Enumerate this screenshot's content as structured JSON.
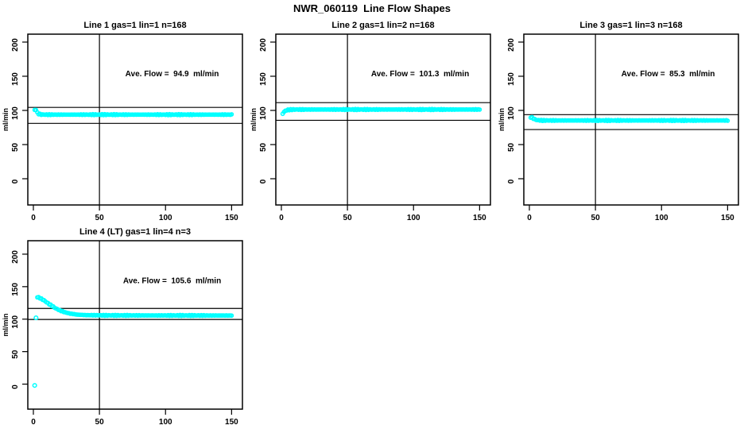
{
  "page": {
    "title": "NWR_060119  Line Flow Shapes"
  },
  "colors": {
    "point": "#00FFFF",
    "axis": "#000000",
    "text": "#000000",
    "background": "#FFFFFF"
  },
  "chart_data": [
    {
      "type": "scatter",
      "title": "Line 1 gas=1 lin=1 n=168",
      "annotation": "Ave. Flow =  94.9  ml/min",
      "ave_flow": 94.9,
      "n": 168,
      "ylabel": "ml/min",
      "x_ticks": [
        0,
        50,
        100,
        150
      ],
      "y_ticks": [
        0,
        50,
        100,
        150,
        200
      ],
      "xlim": [
        -4.2,
        158.2
      ],
      "ylim": [
        -38.4,
        211.6
      ],
      "vline_x": 50,
      "hlines": [
        104.4,
        81.0
      ],
      "ave_label_pos": {
        "x": 105,
        "y": 150
      },
      "profile": [
        [
          1,
          100.5
        ],
        [
          2,
          101
        ],
        [
          3,
          96.5
        ],
        [
          4,
          95
        ],
        [
          6,
          94
        ],
        [
          10,
          93.8
        ],
        [
          150,
          93.8
        ]
      ],
      "extra_points": [],
      "x_end": 150
    },
    {
      "type": "scatter",
      "title": "Line 2 gas=1 lin=2 n=168",
      "annotation": "Ave. Flow =  101.3  ml/min",
      "ave_flow": 101.3,
      "n": 168,
      "ylabel": "ml/min",
      "x_ticks": [
        0,
        50,
        100,
        150
      ],
      "y_ticks": [
        0,
        50,
        100,
        150,
        200
      ],
      "xlim": [
        -4.2,
        158.2
      ],
      "ylim": [
        -38.4,
        211.6
      ],
      "vline_x": 50,
      "hlines": [
        111.4,
        85.5
      ],
      "ave_label_pos": {
        "x": 105,
        "y": 150
      },
      "profile": [
        [
          1,
          95.5
        ],
        [
          2,
          97.5
        ],
        [
          3,
          99.5
        ],
        [
          5,
          100.8
        ],
        [
          9,
          101.3
        ],
        [
          150,
          101.3
        ]
      ],
      "extra_points": [],
      "x_end": 150
    },
    {
      "type": "scatter",
      "title": "Line 3 gas=1 lin=3 n=168",
      "annotation": "Ave. Flow =  85.3  ml/min",
      "ave_flow": 85.3,
      "n": 168,
      "ylabel": "ml/min",
      "x_ticks": [
        0,
        50,
        100,
        150
      ],
      "y_ticks": [
        0,
        50,
        100,
        150,
        200
      ],
      "xlim": [
        -4.2,
        158.2
      ],
      "ylim": [
        -38.4,
        211.6
      ],
      "vline_x": 50,
      "hlines": [
        93.8,
        72.0
      ],
      "ave_label_pos": {
        "x": 105,
        "y": 150
      },
      "profile": [
        [
          1,
          90
        ],
        [
          2,
          89.5
        ],
        [
          4,
          87
        ],
        [
          6,
          85.8
        ],
        [
          10,
          85.3
        ],
        [
          150,
          85.3
        ]
      ],
      "extra_points": [],
      "x_end": 150
    },
    {
      "type": "scatter",
      "title": "Line 4 (LT) gas=1 lin=4 n=3",
      "annotation": "Ave. Flow =  105.6  ml/min",
      "ave_flow": 105.6,
      "n": 3,
      "ylabel": "ml/min",
      "x_ticks": [
        0,
        50,
        100,
        150
      ],
      "y_ticks": [
        0,
        50,
        100,
        150,
        200
      ],
      "xlim": [
        -4.2,
        158.2
      ],
      "ylim": [
        -38.5,
        220.7
      ],
      "vline_x": 50,
      "hlines": [
        116.5,
        99.5
      ],
      "ave_label_pos": {
        "x": 105,
        "y": 155
      },
      "profile": [
        [
          3,
          134
        ],
        [
          5,
          132.5
        ],
        [
          8,
          129
        ],
        [
          11,
          124.5
        ],
        [
          14,
          120.5
        ],
        [
          17,
          116.5
        ],
        [
          20,
          113.5
        ],
        [
          24,
          110.5
        ],
        [
          28,
          108.5
        ],
        [
          33,
          107
        ],
        [
          40,
          106.2
        ],
        [
          55,
          105.8
        ],
        [
          150,
          105.6
        ]
      ],
      "extra_points": [
        [
          1,
          -2
        ],
        [
          2,
          102
        ]
      ],
      "x_end": 150
    }
  ]
}
